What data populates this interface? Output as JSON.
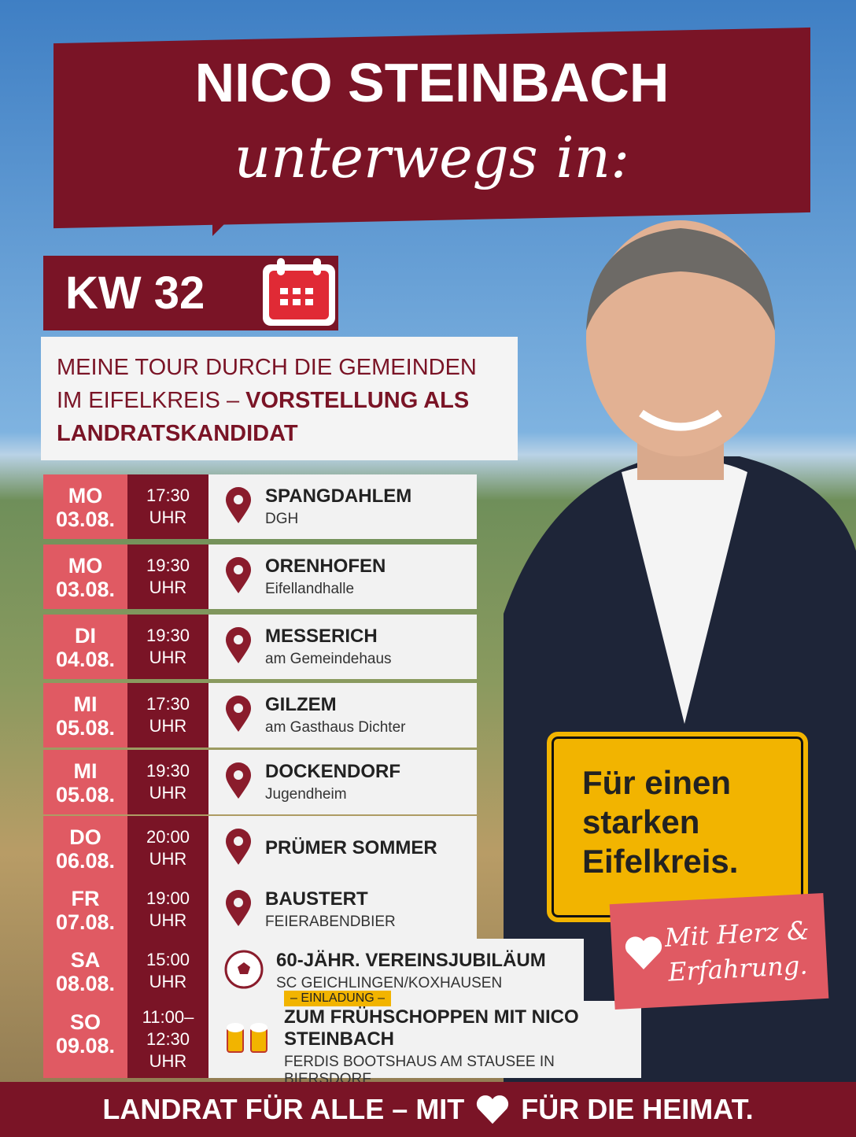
{
  "header": {
    "name": "NICO STEINBACH",
    "subtitle": "unterwegs in:"
  },
  "week": "KW 32",
  "intro": {
    "text": "MEINE TOUR DURCH DIE GEMEINDEN IM EIFELKREIS – ",
    "bold": "VORSTELLUNG ALS LANDRATSKANDIDAT"
  },
  "events": [
    {
      "day": "MO",
      "date": "03.08.",
      "time": [
        "17:30",
        "UHR"
      ],
      "place": "SPANGDAHLEM",
      "detail": "DGH"
    },
    {
      "day": "MO",
      "date": "03.08.",
      "time": [
        "19:30",
        "UHR"
      ],
      "place": "ORENHOFEN",
      "detail": "Eifellandhalle"
    },
    {
      "day": "DI",
      "date": "04.08.",
      "time": [
        "19:30",
        "UHR"
      ],
      "place": "MESSERICH",
      "detail": "am Gemeindehaus"
    },
    {
      "day": "MI",
      "date": "05.08.",
      "time": [
        "17:30",
        "UHR"
      ],
      "place": "GILZEM",
      "detail": "am Gasthaus Dichter"
    },
    {
      "day": "MI",
      "date": "05.08.",
      "time": [
        "19:30",
        "UHR"
      ],
      "place": "DOCKENDORF",
      "detail": "Jugendheim"
    },
    {
      "day": "DO",
      "date": "06.08.",
      "time": [
        "20:00",
        "UHR"
      ],
      "place": "PRÜMER SOMMER"
    },
    {
      "day": "FR",
      "date": "07.08.",
      "time": [
        "19:00",
        "UHR"
      ],
      "place": "BAUSTERT",
      "detail": "FEIERABENDBIER"
    },
    {
      "day": "SA",
      "date": "08.08.",
      "time": [
        "15:00",
        "UHR"
      ],
      "place": "60-JÄHR. VEREINSJUBILÄUM",
      "detail": "SC GEICHLINGEN/KOXHAUSEN"
    },
    {
      "day": "SO",
      "date": "09.08.",
      "time": [
        "11:00–",
        "12:30",
        "UHR"
      ],
      "tag": "– EINLADUNG –",
      "place": "ZUM FRÜHSCHOPPEN MIT NICO STEINBACH",
      "detail": "FERDIS BOOTSHAUS AM STAUSEE IN BIERSDORF"
    }
  ],
  "sign": [
    "Für einen",
    "starken",
    "Eifelkreis."
  ],
  "badge": [
    "Mit Herz &",
    "Erfahrung."
  ],
  "footer": {
    "left": "LANDRAT FÜR ALLE – MIT",
    "right": "FÜR DIE HEIMAT."
  }
}
